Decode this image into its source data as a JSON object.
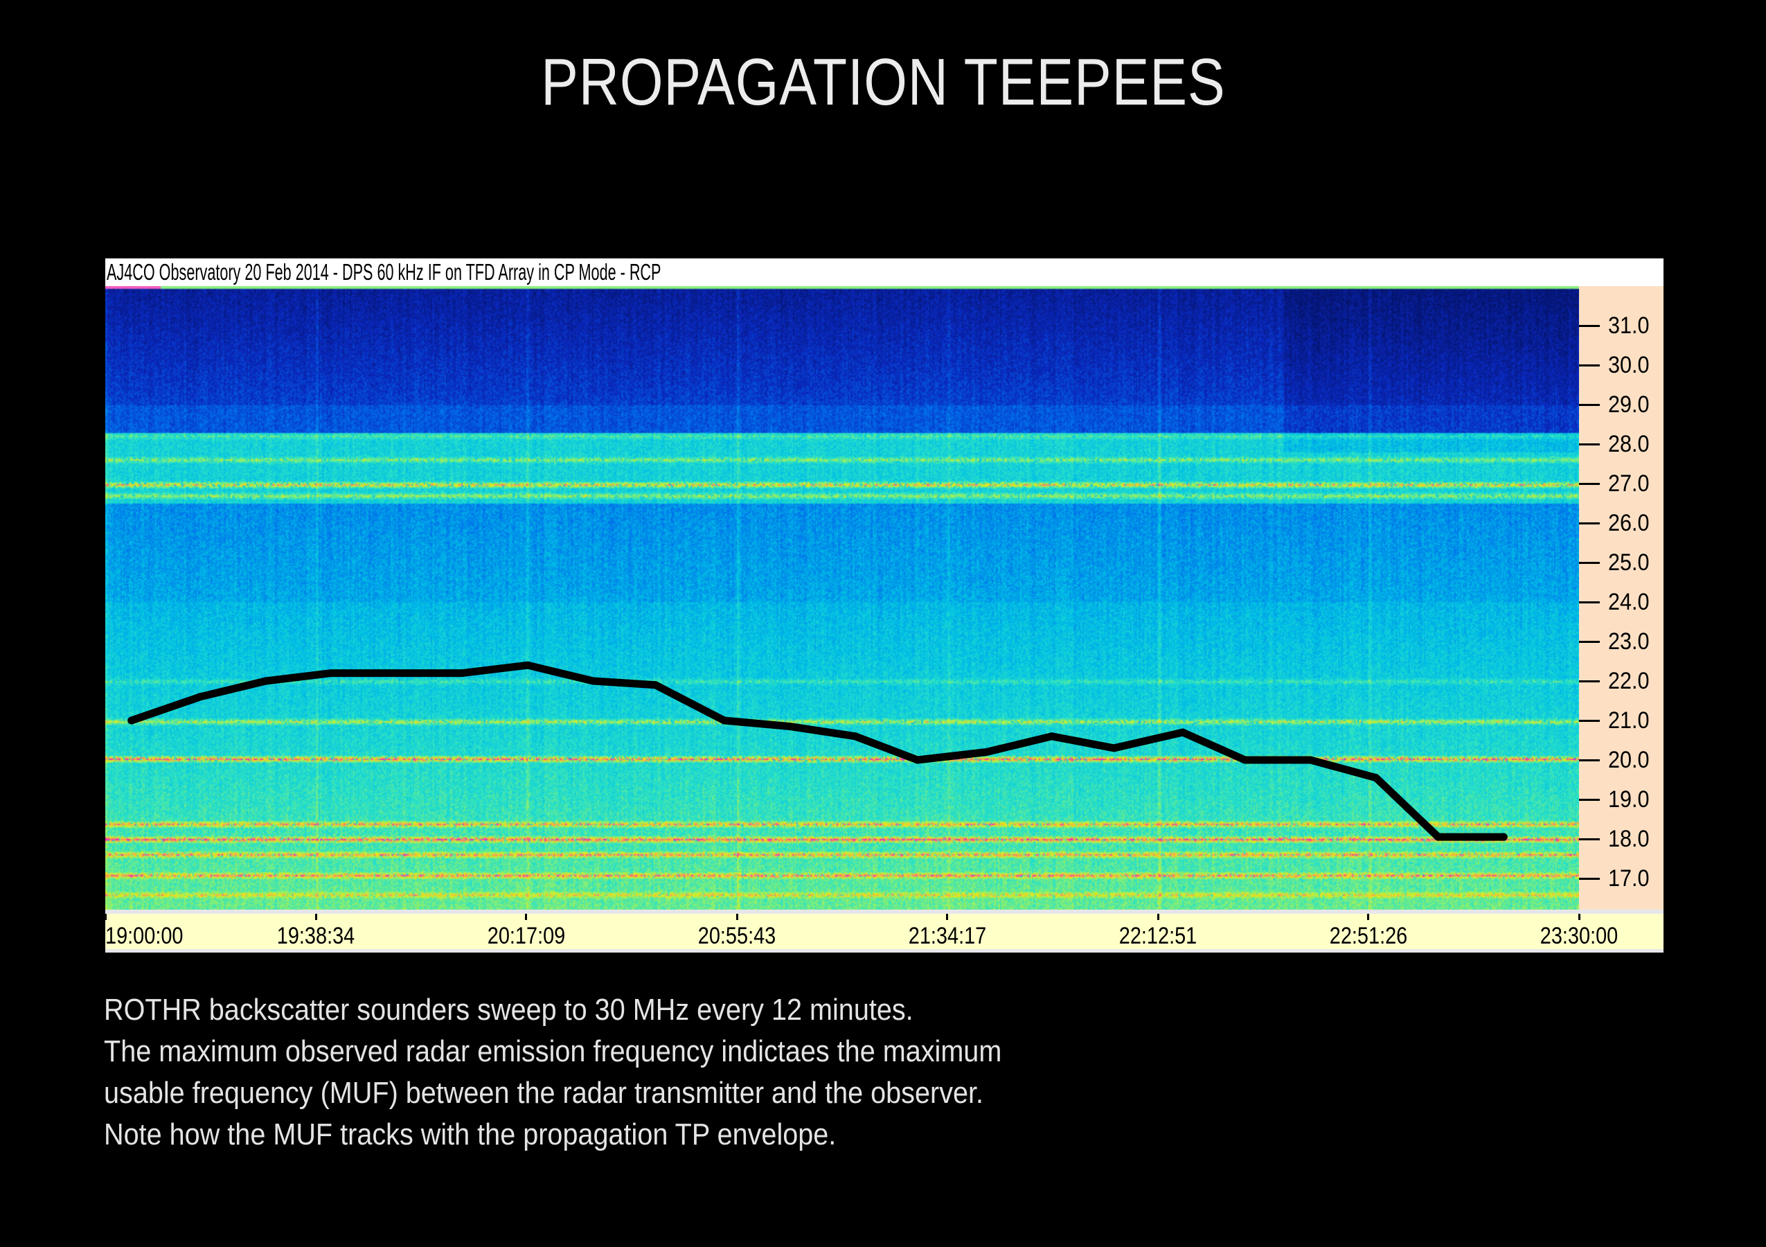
{
  "title": "PROPAGATION TEEPEES",
  "figure_header": "AJ4CO Observatory 20 Feb 2014 - DPS 60 kHz IF on TFD Array in CP Mode - RCP",
  "caption_lines": [
    "ROTHR backscatter sounders sweep to 30 MHz every 12 minutes.",
    "The maximum observed radar emission frequency indictaes the maximum",
    "usable frequency (MUF) between the radar transmitter and the observer.",
    "Note how the MUF tracks with the propagation TP envelope."
  ],
  "colors": {
    "background": "#000000",
    "header_bg": "#ffffff",
    "y_axis_bg": "#fde0c4",
    "x_axis_bg": "#ffffc8",
    "muf_line": "#000000"
  },
  "chart_data": {
    "type": "line",
    "title": "AJ4CO Observatory 20 Feb 2014 - DPS 60 kHz IF on TFD Array in CP Mode - RCP",
    "background": "spectrogram",
    "xlabel": "",
    "ylabel": "",
    "x_unit": "hours after 19:00:00",
    "y_unit": "MHz",
    "xlim": [
      0,
      4.5
    ],
    "ylim": [
      16.2,
      31.8
    ],
    "x_tick_labels": [
      "19:00:00",
      "19:38:34",
      "20:17:09",
      "20:55:43",
      "21:34:17",
      "22:12:51",
      "22:51:26",
      "23:30:00"
    ],
    "x_tick_values": [
      0,
      0.6429,
      1.2857,
      1.9286,
      2.5714,
      3.2143,
      3.8571,
      4.5
    ],
    "y_tick_labels": [
      "31.0",
      "30.0",
      "29.0",
      "28.0",
      "27.0",
      "26.0",
      "25.0",
      "24.0",
      "23.0",
      "22.0",
      "21.0",
      "20.0",
      "19.0",
      "18.0",
      "17.0"
    ],
    "y_tick_values": [
      31,
      30,
      29,
      28,
      27,
      26,
      25,
      24,
      23,
      22,
      21,
      20,
      19,
      18,
      17
    ],
    "grid": false,
    "legend": "none",
    "series": [
      {
        "name": "MUF",
        "x": [
          0.08,
          0.29,
          0.49,
          0.69,
          1.09,
          1.29,
          1.49,
          1.68,
          1.89,
          2.09,
          2.29,
          2.48,
          2.69,
          2.89,
          3.08,
          3.29,
          3.48,
          3.68,
          3.88,
          4.07,
          4.27
        ],
        "y": [
          21.0,
          21.6,
          22.0,
          22.2,
          22.2,
          22.4,
          22.0,
          21.9,
          21.0,
          20.85,
          20.6,
          20.0,
          20.2,
          20.6,
          20.3,
          20.7,
          20.0,
          20.0,
          19.55,
          18.05,
          18.05
        ]
      }
    ]
  }
}
